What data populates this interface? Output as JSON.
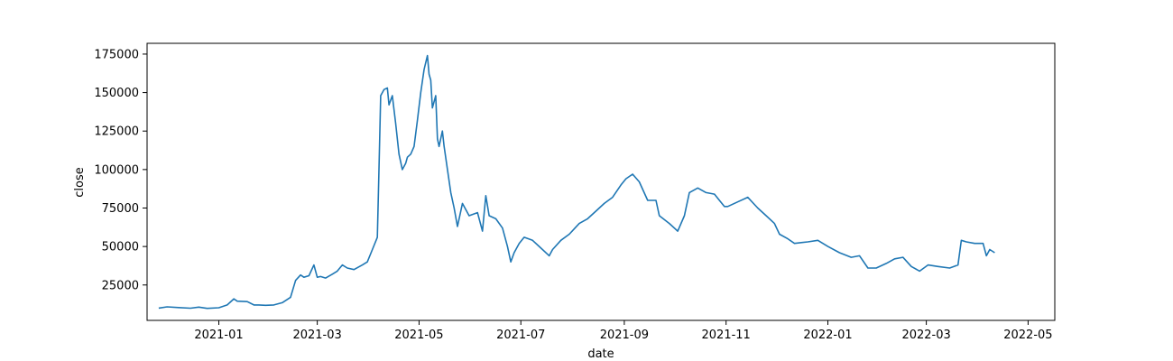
{
  "chart_data": {
    "type": "line",
    "title": "",
    "xlabel": "date",
    "ylabel": "close",
    "grid": false,
    "legend": "none",
    "xlim": [
      "2020-11-19",
      "2022-05-17"
    ],
    "ylim": [
      2000,
      182000
    ],
    "x_ticks": [
      "2021-01-01",
      "2021-03-01",
      "2021-05-01",
      "2021-07-01",
      "2021-09-01",
      "2021-11-01",
      "2022-01-01",
      "2022-03-01",
      "2022-05-01"
    ],
    "x_tick_labels": [
      "2021-01",
      "2021-03",
      "2021-05",
      "2021-07",
      "2021-09",
      "2021-11",
      "2022-01",
      "2022-03",
      "2022-05"
    ],
    "y_ticks": [
      25000,
      50000,
      75000,
      100000,
      125000,
      150000,
      175000
    ],
    "y_tick_labels": [
      "25000",
      "50000",
      "75000",
      "100000",
      "125000",
      "150000",
      "175000"
    ],
    "series": [
      {
        "color": "#1f77b4",
        "x": [
          "2020-11-26",
          "2020-12-01",
          "2020-12-08",
          "2020-12-15",
          "2020-12-20",
          "2020-12-25",
          "2021-01-01",
          "2021-01-06",
          "2021-01-10",
          "2021-01-12",
          "2021-01-18",
          "2021-01-22",
          "2021-01-25",
          "2021-01-29",
          "2021-02-03",
          "2021-02-08",
          "2021-02-13",
          "2021-02-16",
          "2021-02-19",
          "2021-02-21",
          "2021-02-24",
          "2021-02-27",
          "2021-03-01",
          "2021-03-03",
          "2021-03-06",
          "2021-03-10",
          "2021-03-13",
          "2021-03-16",
          "2021-03-19",
          "2021-03-23",
          "2021-03-28",
          "2021-03-31",
          "2021-04-03",
          "2021-04-06",
          "2021-04-07",
          "2021-04-08",
          "2021-04-10",
          "2021-04-12",
          "2021-04-13",
          "2021-04-15",
          "2021-04-17",
          "2021-04-19",
          "2021-04-21",
          "2021-04-23",
          "2021-04-24",
          "2021-04-26",
          "2021-04-28",
          "2021-04-30",
          "2021-05-02",
          "2021-05-04",
          "2021-05-06",
          "2021-05-07",
          "2021-05-08",
          "2021-05-09",
          "2021-05-11",
          "2021-05-12",
          "2021-05-13",
          "2021-05-15",
          "2021-05-16",
          "2021-05-18",
          "2021-05-20",
          "2021-05-22",
          "2021-05-24",
          "2021-05-27",
          "2021-05-31",
          "2021-06-05",
          "2021-06-08",
          "2021-06-10",
          "2021-06-12",
          "2021-06-16",
          "2021-06-20",
          "2021-06-23",
          "2021-06-25",
          "2021-06-27",
          "2021-06-30",
          "2021-07-03",
          "2021-07-08",
          "2021-07-12",
          "2021-07-18",
          "2021-07-20",
          "2021-07-25",
          "2021-07-30",
          "2021-08-05",
          "2021-08-10",
          "2021-08-15",
          "2021-08-20",
          "2021-08-25",
          "2021-08-30",
          "2021-09-02",
          "2021-09-06",
          "2021-09-10",
          "2021-09-15",
          "2021-09-20",
          "2021-09-22",
          "2021-09-28",
          "2021-10-03",
          "2021-10-07",
          "2021-10-10",
          "2021-10-15",
          "2021-10-20",
          "2021-10-25",
          "2021-10-28",
          "2021-10-31",
          "2021-11-02",
          "2021-11-08",
          "2021-11-14",
          "2021-11-20",
          "2021-11-25",
          "2021-11-30",
          "2021-12-03",
          "2021-12-08",
          "2021-12-12",
          "2021-12-20",
          "2021-12-26",
          "2022-01-01",
          "2022-01-08",
          "2022-01-15",
          "2022-01-20",
          "2022-01-25",
          "2022-01-30",
          "2022-02-05",
          "2022-02-10",
          "2022-02-15",
          "2022-02-20",
          "2022-02-25",
          "2022-03-02",
          "2022-03-08",
          "2022-03-15",
          "2022-03-20",
          "2022-03-22",
          "2022-03-25",
          "2022-03-30",
          "2022-04-04",
          "2022-04-06",
          "2022-04-08",
          "2022-04-11"
        ],
        "y": [
          10000,
          10800,
          10300,
          9900,
          10600,
          9800,
          10200,
          12000,
          16000,
          14500,
          14200,
          12000,
          12000,
          11800,
          12000,
          13500,
          17000,
          28000,
          31500,
          30000,
          31000,
          38000,
          30000,
          30500,
          29500,
          32000,
          34000,
          38000,
          36000,
          35000,
          38000,
          40000,
          48000,
          56000,
          100000,
          148000,
          152000,
          153000,
          142000,
          148000,
          130000,
          110000,
          100000,
          104000,
          108000,
          110000,
          115000,
          132000,
          150000,
          165000,
          174000,
          162000,
          158000,
          140000,
          148000,
          120000,
          115000,
          125000,
          115000,
          100000,
          85000,
          75000,
          63000,
          78000,
          70000,
          72000,
          60000,
          83000,
          70000,
          68000,
          62000,
          50000,
          40000,
          46000,
          52000,
          56000,
          54000,
          50000,
          44000,
          48000,
          54000,
          58000,
          65000,
          68000,
          73000,
          78000,
          82000,
          90000,
          94000,
          97000,
          92000,
          80000,
          80000,
          70000,
          65000,
          60000,
          70000,
          85000,
          88000,
          85000,
          84000,
          80000,
          76000,
          76000,
          79000,
          82000,
          75000,
          70000,
          65000,
          58000,
          55000,
          52000,
          53000,
          54000,
          50000,
          46000,
          43000,
          44000,
          36000,
          36000,
          39000,
          42000,
          43000,
          37000,
          34000,
          38000,
          37000,
          36000,
          38000,
          54000,
          53000,
          52000,
          52000,
          44000,
          48000,
          46000
        ]
      }
    ]
  }
}
